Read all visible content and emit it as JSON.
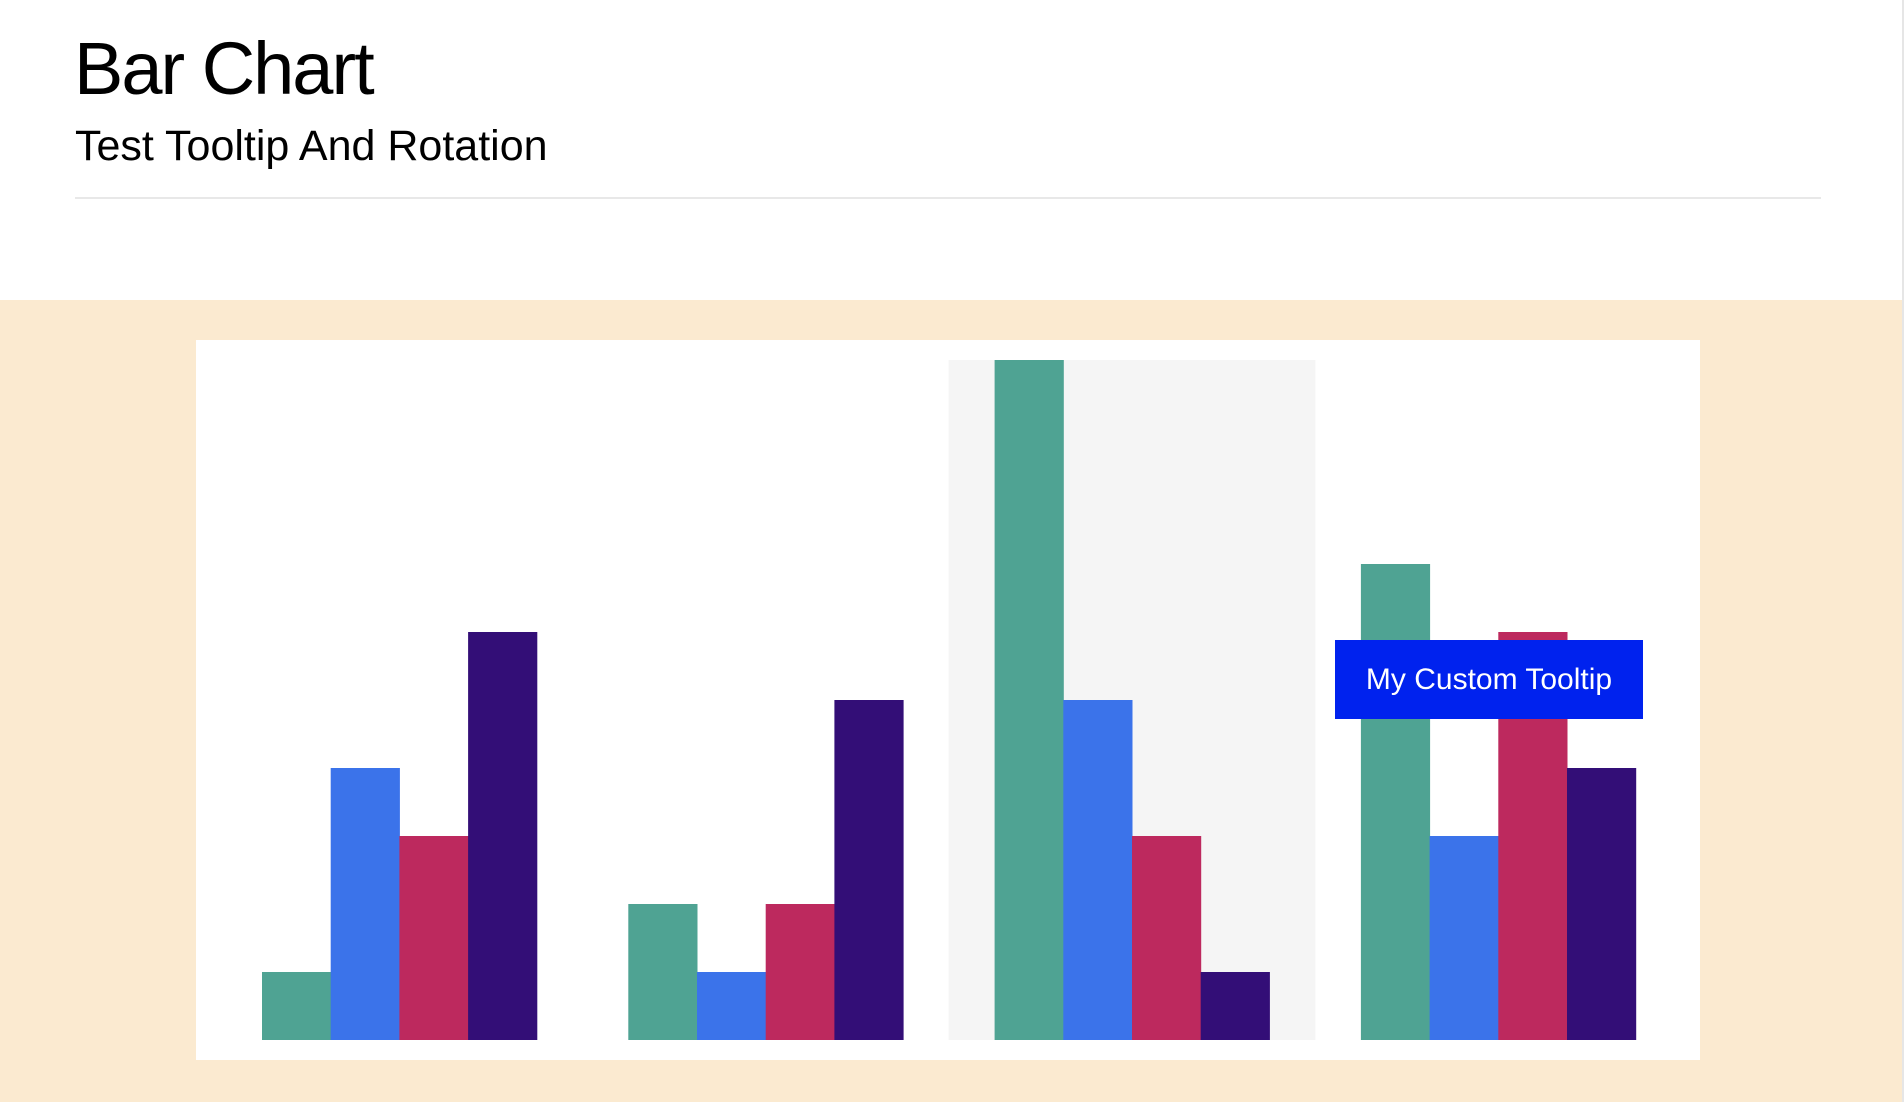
{
  "header": {
    "title": "Bar Chart",
    "subtitle": "Test Tooltip And Rotation"
  },
  "tooltip": {
    "text": "My Custom Tooltip"
  },
  "chart_data": {
    "type": "bar",
    "categories": [
      "",
      "",
      "",
      ""
    ],
    "series": [
      {
        "values": [
          1,
          2,
          10,
          7
        ],
        "color": "#4fa393"
      },
      {
        "values": [
          4,
          1,
          5,
          3
        ],
        "color": "#3b73ea"
      },
      {
        "values": [
          3,
          2,
          3,
          6
        ],
        "color": "#bd295e"
      },
      {
        "values": [
          6,
          5,
          1,
          4
        ],
        "color": "#330e77"
      }
    ],
    "ylim": [
      0,
      10
    ],
    "highlighted_category_index": 2,
    "highlight_color": "#f5f5f5",
    "grid": false,
    "axes_visible": false,
    "background": "#fbead0"
  }
}
